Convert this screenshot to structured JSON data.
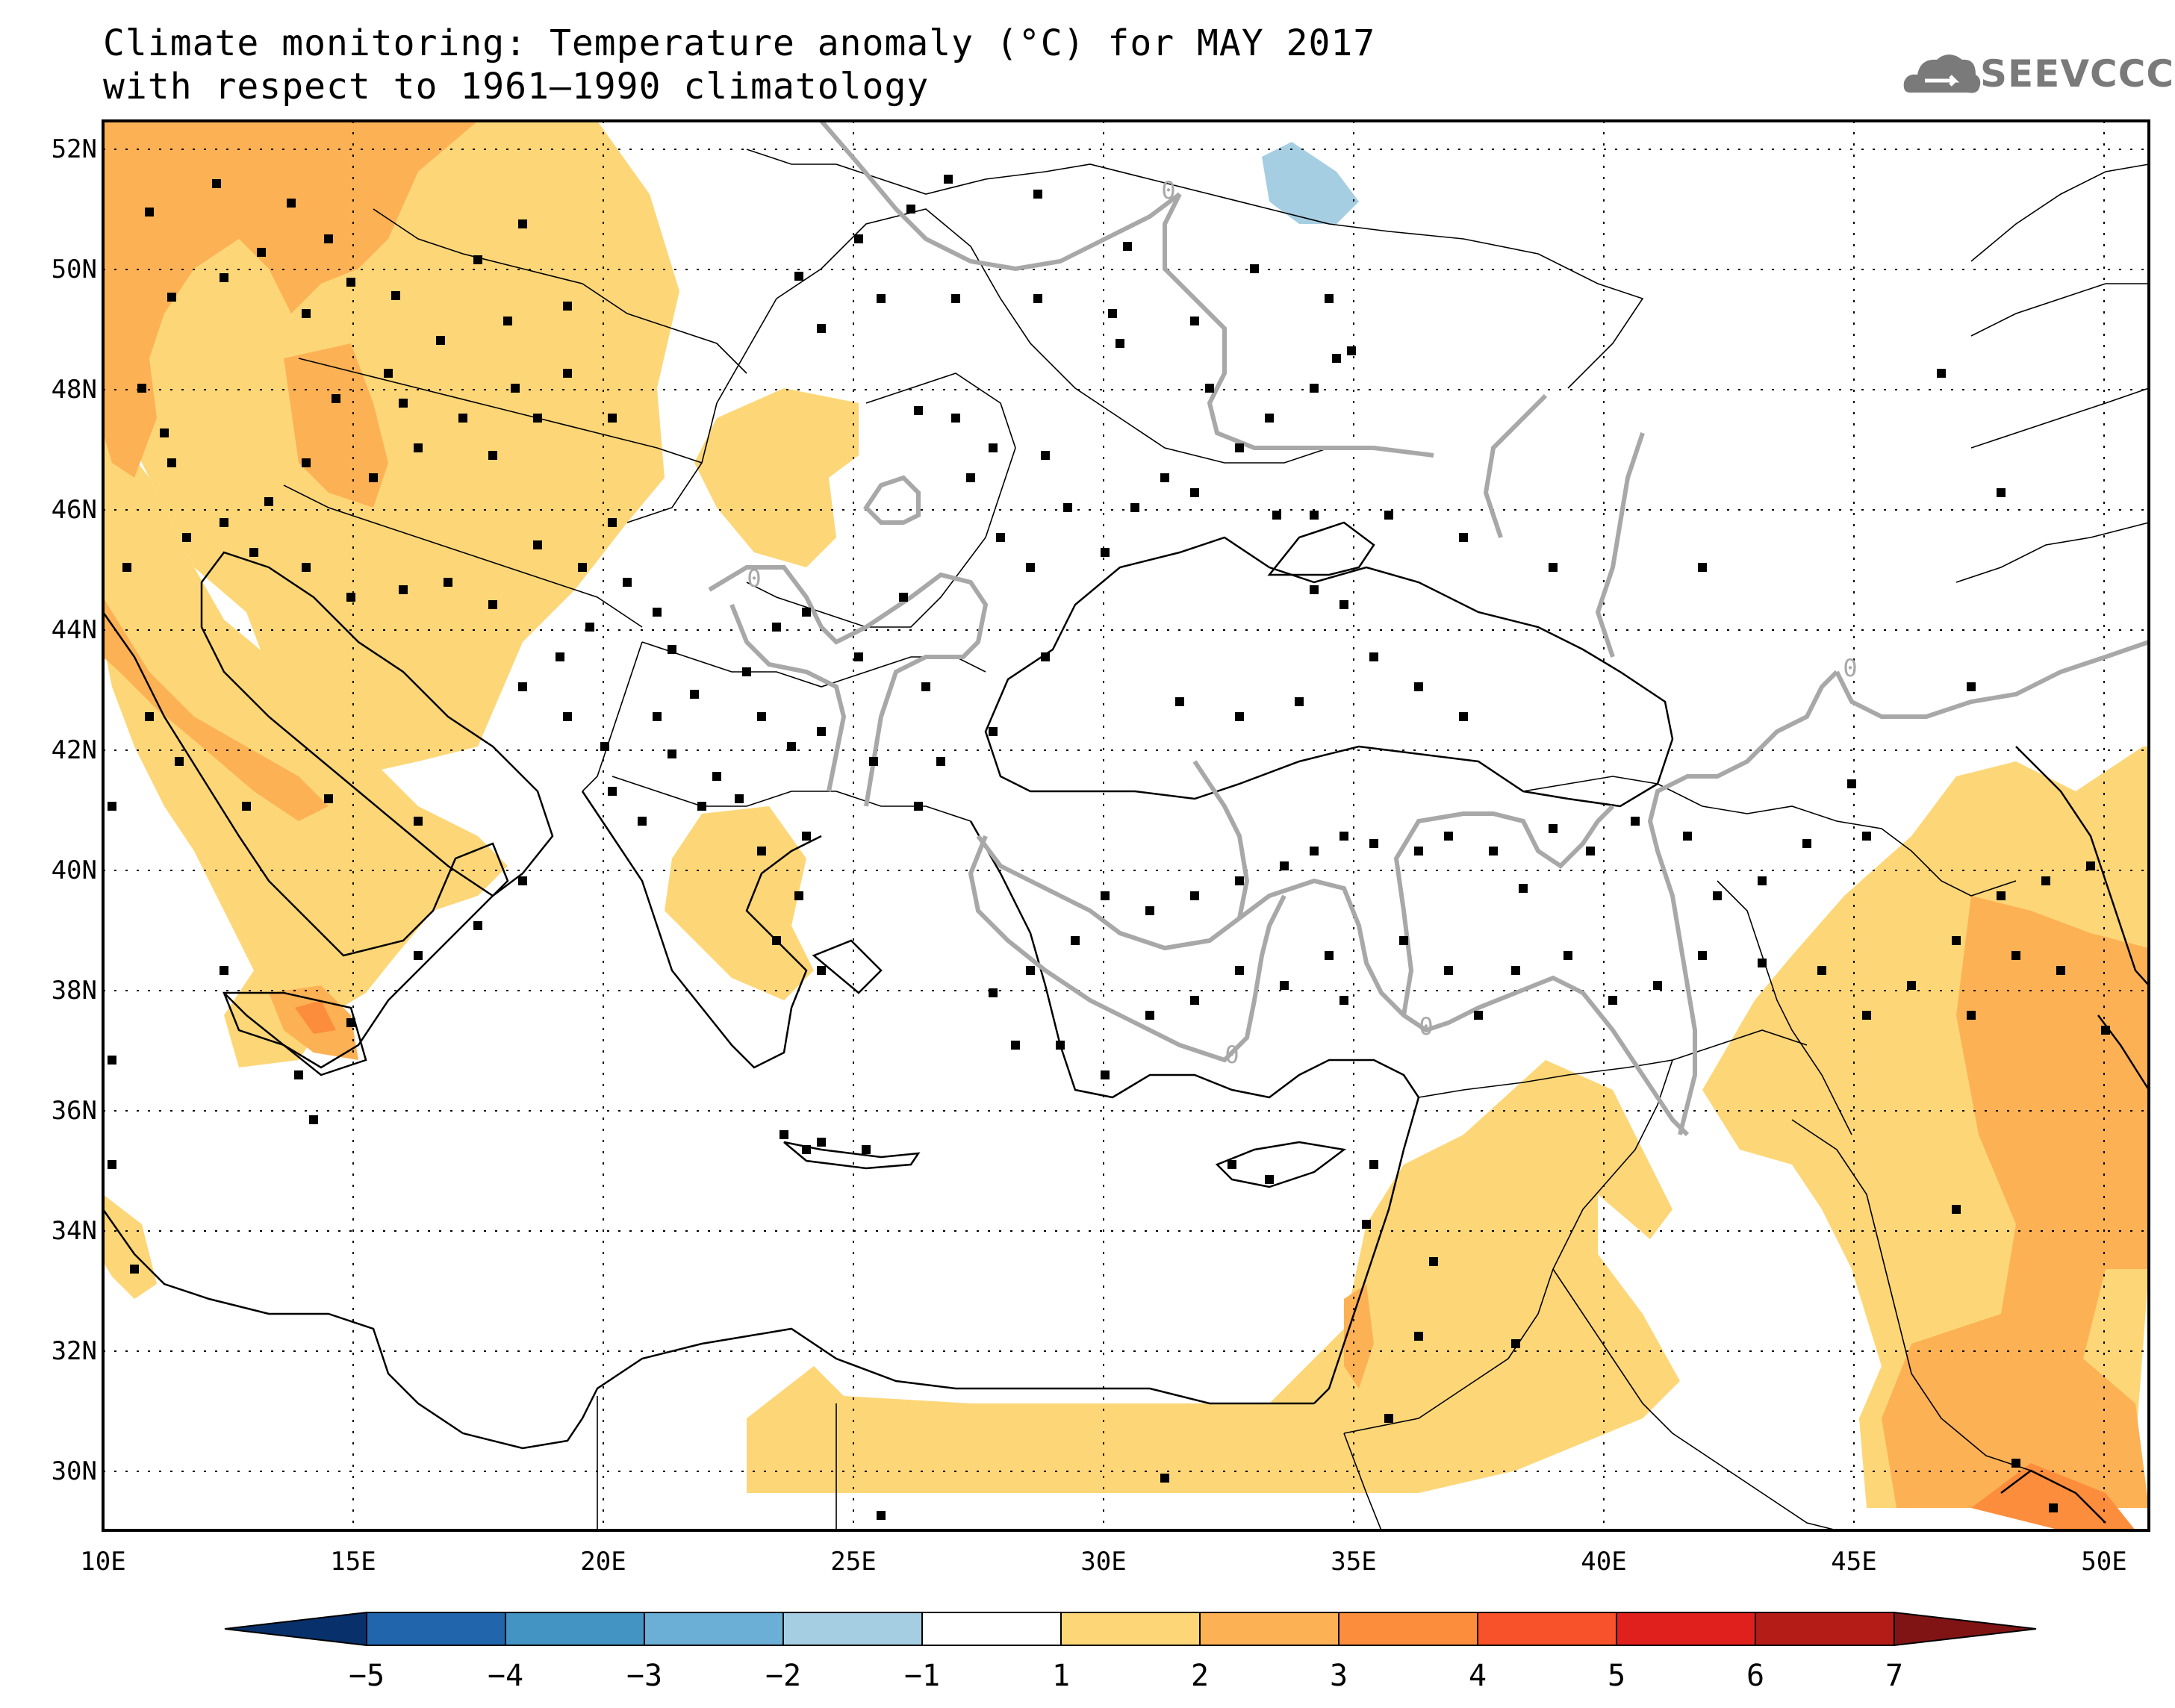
{
  "title_line1": "Climate monitoring: Temperature anomaly (°C) for MAY 2017",
  "title_line2": "with respect to 1961–1990 climatology",
  "logo_text": "SEEVCCC",
  "lat_labels": [
    "52N",
    "50N",
    "48N",
    "46N",
    "44N",
    "42N",
    "40N",
    "38N",
    "36N",
    "34N",
    "32N",
    "30N"
  ],
  "lon_labels": [
    "10E",
    "15E",
    "20E",
    "25E",
    "30E",
    "35E",
    "40E",
    "45E",
    "50E"
  ],
  "contour_label": "0",
  "colorbar": {
    "labels": [
      "−5",
      "−4",
      "−3",
      "−2",
      "−1",
      "1",
      "2",
      "3",
      "4",
      "5",
      "6",
      "7"
    ],
    "colors": [
      "#08306b",
      "#2166ac",
      "#4393c3",
      "#6baed6",
      "#a6cee3",
      "#ffffff",
      "#fdd777",
      "#fdb155",
      "#fc8d3c",
      "#f8522a",
      "#e0201c",
      "#b41c18",
      "#801414"
    ]
  },
  "anomaly_colors": {
    "above_1": "#fdd777",
    "above_2": "#fdb155",
    "above_3": "#fc8d3c",
    "below_minus1": "#a6cee3"
  }
}
